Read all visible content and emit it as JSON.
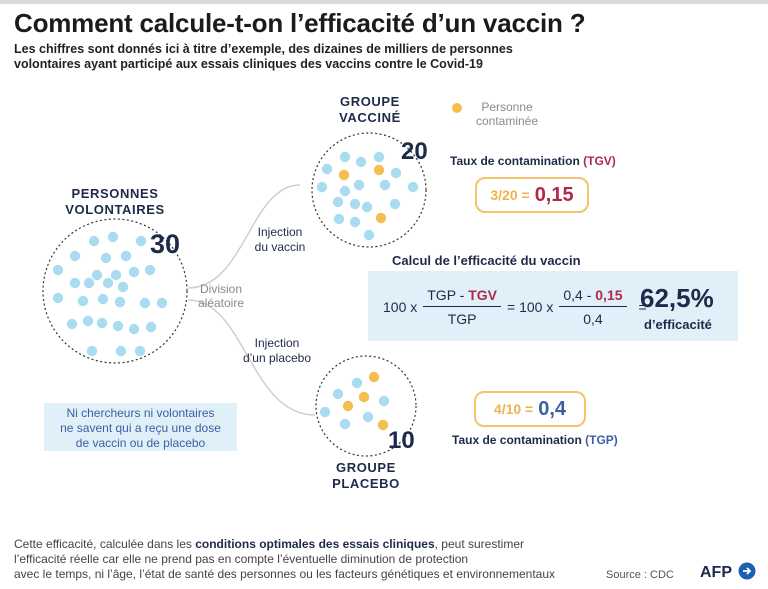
{
  "title": "Comment calcule-t-on l’efficacité d’un vaccin ?",
  "subtitle_line1": "Les chiffres sont donnés ici à titre d’exemple, des dizaines de milliers de personnes",
  "subtitle_line2": "volontaires ayant participé aux essais cliniques des vaccins contre le Covid-19",
  "volunteers": {
    "label_line1": "PERSONNES",
    "label_line2": "VOLONTAIRES",
    "count": "30"
  },
  "division": {
    "line1": "Division",
    "line2": "aléatoire"
  },
  "injection_vaccine": {
    "line1": "Injection",
    "line2": "du vaccin"
  },
  "injection_placebo": {
    "line1": "Injection",
    "line2": "d’un placebo"
  },
  "vaccinated_group": {
    "label_line1": "GROUPE",
    "label_line2": "VACCINÉ",
    "count": "20"
  },
  "placebo_group": {
    "label_line1": "GROUPE",
    "label_line2": "PLACEBO",
    "count": "10"
  },
  "legend": {
    "line1": "Personne",
    "line2": "contaminée"
  },
  "tgv": {
    "title": "Taux de contamination",
    "abbr": "(TGV)",
    "fraction": "3/20 =",
    "value": "0,15"
  },
  "tgp": {
    "title": "Taux de contamination",
    "abbr": "(TGP)",
    "fraction": "4/10 =",
    "value": "0,4"
  },
  "calc": {
    "title": "Calcul de l’efficacité du vaccin",
    "prefix1": "100 x",
    "num_tgp": "TGP",
    "minus": "-",
    "num_tgv": "TGV",
    "den": "TGP",
    "equals1": "= 100 x",
    "num_val1": "0,4",
    "num_val2": "0,15",
    "den_val": "0,4",
    "equals2": "=",
    "result": "62,5%",
    "result_label": "d’efficacité"
  },
  "note": {
    "line1": "Ni chercheurs ni volontaires",
    "line2": "ne savent qui a reçu une dose",
    "line3": "de vaccin ou de placebo"
  },
  "footer": {
    "part1": "Cette efficacité, calculée dans les ",
    "bold": "conditions optimales des essais cliniques",
    "part2": ", peut surestimer",
    "line2": "l’efficacité réelle car elle ne prend pas en compte l’éventuelle diminution de protection",
    "line3": "avec le temps, ni l’âge, l’état de santé des personnes ou les facteurs génétiques et environnementaux"
  },
  "source": "Source : CDC",
  "logo": "AFP",
  "colors": {
    "healthy_dot": "#a9dcf1",
    "infected_dot": "#f5bf4f",
    "tgv": "#b0284a",
    "tgp": "#3e5fa2",
    "box_border": "#f2c56b",
    "calc_bg": "#dff0f8"
  }
}
